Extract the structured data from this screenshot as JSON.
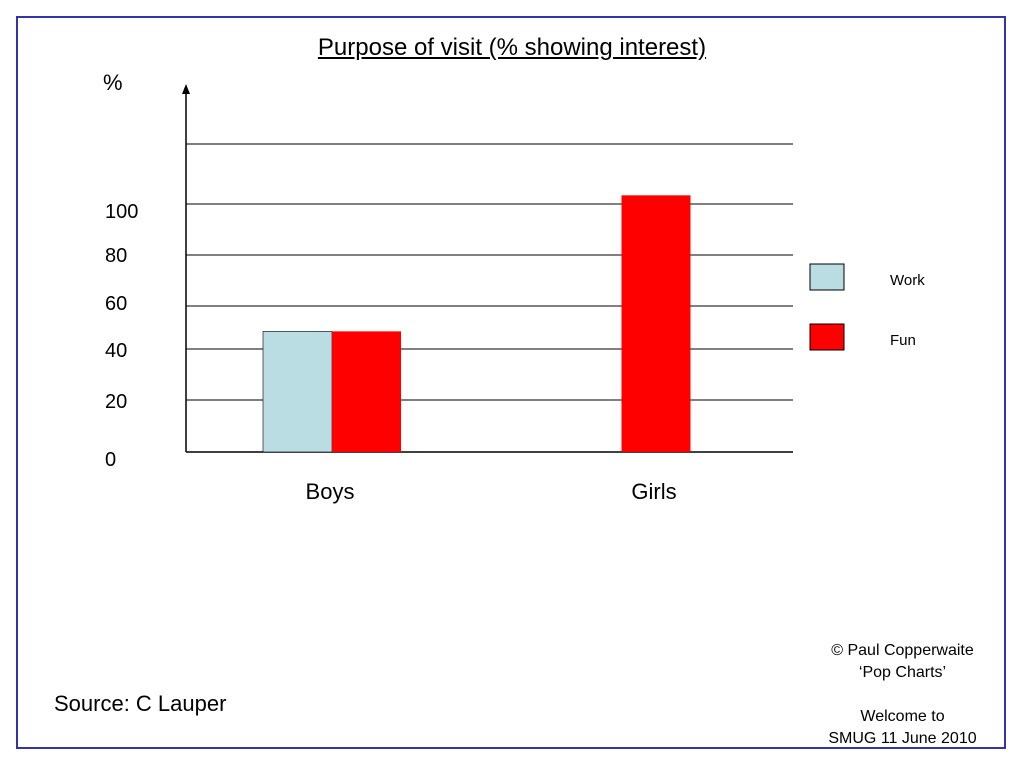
{
  "chart_data": {
    "type": "bar",
    "title": "Purpose of visit (% showing interest)",
    "ylabel": "%",
    "xlabel": "",
    "categories": [
      "Boys",
      "Girls"
    ],
    "series": [
      {
        "name": "Work",
        "color": "#b9dde2",
        "values": [
          47,
          0
        ]
      },
      {
        "name": "Fun",
        "color": "#ff0000",
        "values": [
          47,
          100
        ]
      }
    ],
    "yticks": [
      "0",
      "20",
      "40",
      "60",
      "80",
      "100"
    ],
    "ylim": [
      0,
      120
    ],
    "grid": true,
    "legend_position": "right"
  },
  "footer": {
    "source": "Source: C Lauper",
    "credit_line1": "© Paul Copperwaite",
    "credit_line2": "‘Pop Charts’",
    "credit_line3": "Welcome to",
    "credit_line4": "SMUG 11 June 2010"
  }
}
